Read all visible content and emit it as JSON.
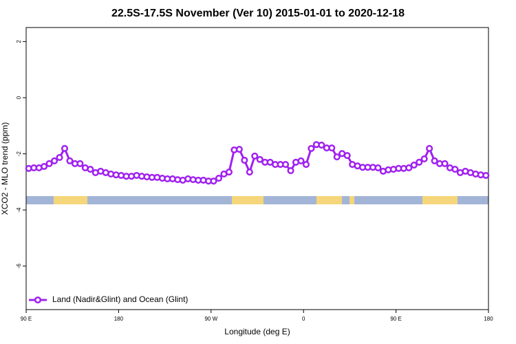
{
  "chart_data": {
    "type": "line",
    "title": "22.5S-17.5S November (Ver 10)   2015-01-01 to 2020-12-18",
    "x_label": "Longitude (deg E)",
    "y_label": "XCO2 - MLO trend (ppm)",
    "xlim": [
      90,
      540
    ],
    "ylim": [
      -7.55,
      2.5
    ],
    "xticks": [
      {
        "value": 90,
        "label": "90 E"
      },
      {
        "value": 180,
        "label": "180"
      },
      {
        "value": 270,
        "label": "90 W"
      },
      {
        "value": 360,
        "label": "0"
      },
      {
        "value": 450,
        "label": "90 E"
      },
      {
        "value": 540,
        "label": "180"
      }
    ],
    "yticks": [
      2,
      0,
      -2,
      -4,
      -6
    ],
    "legend": "bottom-left",
    "x": [
      92.5,
      97.5,
      102.5,
      107.5,
      112.5,
      117.5,
      122.5,
      127.5,
      132.5,
      137.5,
      142.5,
      147.5,
      152.5,
      157.5,
      162.5,
      167.5,
      172.5,
      177.5,
      182.5,
      187.5,
      192.5,
      197.5,
      202.5,
      207.5,
      212.5,
      217.5,
      222.5,
      227.5,
      232.5,
      237.5,
      242.5,
      247.5,
      252.5,
      257.5,
      262.5,
      267.5,
      272.5,
      277.5,
      282.5,
      287.5,
      292.5,
      297.5,
      302.5,
      307.5,
      312.5,
      317.5,
      322.5,
      327.5,
      332.5,
      337.5,
      342.5,
      347.5,
      352.5,
      357.5,
      362.5,
      367.5,
      372.5,
      377.5,
      382.5,
      387.5,
      392.5,
      397.5,
      402.5,
      407.5,
      412.5,
      417.5,
      422.5,
      427.5,
      432.5,
      437.5,
      442.5,
      447.5,
      452.5,
      457.5,
      462.5,
      467.5,
      472.5,
      477.5,
      482.5,
      487.5,
      492.5,
      497.5,
      502.5,
      507.5,
      512.5,
      517.5,
      522.5,
      527.5,
      532.5,
      537.5
    ],
    "series": [
      {
        "name": "Land (Nadir&Glint) and Ocean (Glint)",
        "color": "#a020f0",
        "values": [
          -2.52,
          -2.5,
          -2.5,
          -2.45,
          -2.35,
          -2.25,
          -2.13,
          -1.81,
          -2.25,
          -2.35,
          -2.35,
          -2.5,
          -2.55,
          -2.67,
          -2.62,
          -2.67,
          -2.72,
          -2.75,
          -2.77,
          -2.8,
          -2.8,
          -2.77,
          -2.8,
          -2.82,
          -2.84,
          -2.84,
          -2.87,
          -2.89,
          -2.89,
          -2.92,
          -2.94,
          -2.89,
          -2.92,
          -2.94,
          -2.94,
          -2.97,
          -2.97,
          -2.87,
          -2.72,
          -2.65,
          -1.86,
          -1.84,
          -2.23,
          -2.65,
          -2.08,
          -2.2,
          -2.3,
          -2.3,
          -2.38,
          -2.38,
          -2.38,
          -2.6,
          -2.3,
          -2.25,
          -2.38,
          -1.81,
          -1.67,
          -1.69,
          -1.79,
          -1.79,
          -2.11,
          -1.99,
          -2.06,
          -2.38,
          -2.43,
          -2.48,
          -2.48,
          -2.48,
          -2.5,
          -2.62,
          -2.57,
          -2.55,
          -2.52,
          -2.52,
          -2.5,
          -2.4,
          -2.3,
          -2.18,
          -1.81,
          -2.25,
          -2.35,
          -2.35,
          -2.5,
          -2.55,
          -2.67,
          -2.62,
          -2.67,
          -2.72,
          -2.75,
          -2.77
        ]
      }
    ]
  }
}
